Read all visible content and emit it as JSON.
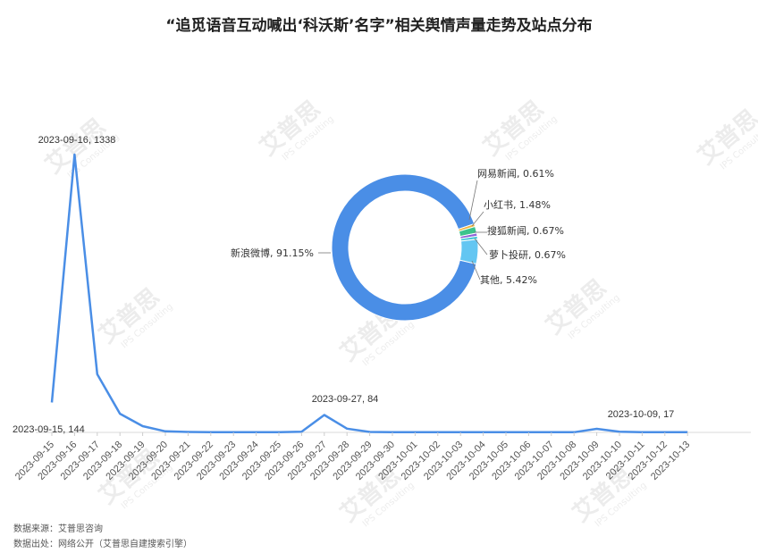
{
  "title": "“追觅语音互动喊出‘科沃斯’名字”相关舆情声量走势及站点分布",
  "source_line1": "数据来源：艾普思咨询",
  "source_line2": "数据出处：网络公开（艾普思自建搜索引擎）",
  "watermark": "艾普思",
  "watermark_sub": "IPS Consulting",
  "colors": {
    "line": "#4a8ee6",
    "donut_main": "#4a8ee6",
    "green": "#3cc48c",
    "orange": "#f0b33a",
    "purple": "#8e63d8",
    "teal": "#47c8d8",
    "cyan": "#63c6f2"
  },
  "chart_data": [
    {
      "type": "line",
      "x": [
        "2023-09-15",
        "2023-09-16",
        "2023-09-17",
        "2023-09-18",
        "2023-09-19",
        "2023-09-20",
        "2023-09-21",
        "2023-09-22",
        "2023-09-23",
        "2023-09-24",
        "2023-09-25",
        "2023-09-26",
        "2023-09-27",
        "2023-09-28",
        "2023-09-29",
        "2023-09-30",
        "2023-10-01",
        "2023-10-02",
        "2023-10-03",
        "2023-10-04",
        "2023-10-05",
        "2023-10-06",
        "2023-10-07",
        "2023-10-08",
        "2023-10-09",
        "2023-10-10",
        "2023-10-11",
        "2023-10-12",
        "2023-10-13"
      ],
      "values": [
        144,
        1338,
        280,
        90,
        30,
        5,
        2,
        1,
        1,
        1,
        1,
        3,
        84,
        18,
        2,
        1,
        1,
        1,
        1,
        1,
        1,
        1,
        1,
        1,
        17,
        3,
        1,
        1,
        1
      ],
      "annotations": [
        {
          "x": "2023-09-15",
          "label": "2023-09-15, 144"
        },
        {
          "x": "2023-09-16",
          "label": "2023-09-16, 1338"
        },
        {
          "x": "2023-09-27",
          "label": "2023-09-27, 84"
        },
        {
          "x": "2023-10-09",
          "label": "2023-10-09, 17"
        }
      ]
    },
    {
      "type": "pie",
      "donut": true,
      "slices": [
        {
          "label": "新浪微博",
          "value": 91.15,
          "text": "新浪微博, 91.15%",
          "color": "#4a8ee6"
        },
        {
          "label": "网易新闻",
          "value": 0.61,
          "text": "网易新闻, 0.61%",
          "color": "#f0b33a"
        },
        {
          "label": "小红书",
          "value": 1.48,
          "text": "小红书, 1.48%",
          "color": "#3cc48c"
        },
        {
          "label": "搜狐新闻",
          "value": 0.67,
          "text": "搜狐新闻, 0.67%",
          "color": "#8e63d8"
        },
        {
          "label": "萝卜投研",
          "value": 0.67,
          "text": "萝卜投研, 0.67%",
          "color": "#47c8d8"
        },
        {
          "label": "其他",
          "value": 5.42,
          "text": "其他, 5.42%",
          "color": "#63c6f2"
        }
      ]
    }
  ]
}
